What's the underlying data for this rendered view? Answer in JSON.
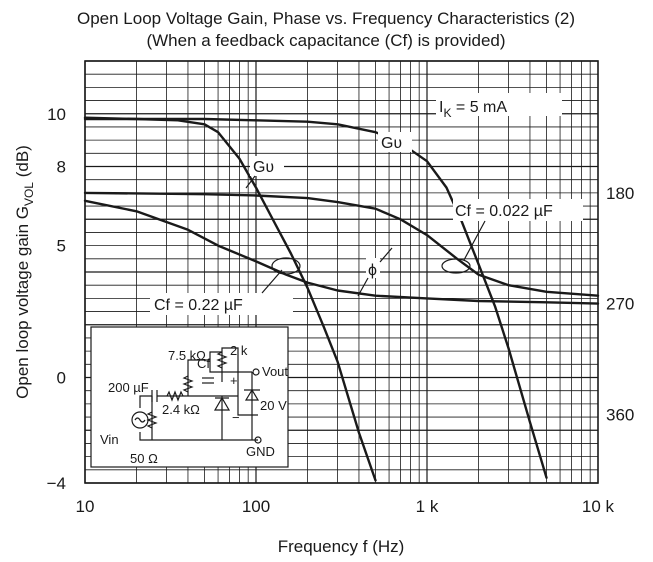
{
  "chart_data": {
    "type": "line",
    "title_line1": "Open Loop Voltage Gain, Phase vs. Frequency Characteristics (2)",
    "title_line2": "(When a feedback capacitance (Cf) is provided)",
    "xlabel": "Frequency  f  (Hz)",
    "ylabel_prefix": "Open loop voltage gain  G",
    "ylabel_sub": "VOL",
    "ylabel_suffix": "  (dB)",
    "x_scale": "log",
    "xlim": [
      10,
      10000
    ],
    "x_ticks": [
      {
        "value": 10,
        "label": "10"
      },
      {
        "value": 100,
        "label": "100"
      },
      {
        "value": 1000,
        "label": "1 k"
      },
      {
        "value": 10000,
        "label": "10 k"
      }
    ],
    "ylim": [
      -4,
      12
    ],
    "y_ticks": [
      {
        "value": 10,
        "label": "10"
      },
      {
        "value": 8,
        "label": "8"
      },
      {
        "value": 5,
        "label": "5"
      },
      {
        "value": 0,
        "label": "0"
      },
      {
        "value": -4,
        "label": "−4"
      }
    ],
    "y2_ticks": [
      {
        "value": 7,
        "label": "180"
      },
      {
        "value": 2.8,
        "label": "270"
      },
      {
        "value": -1.4,
        "label": "360"
      }
    ],
    "grid": true,
    "series": [
      {
        "name": "Gʋ",
        "role": "gain, Cf = 0.22 µF",
        "x": [
          10,
          20,
          35,
          50,
          60,
          80,
          100,
          130,
          160,
          200,
          250,
          300,
          400,
          500
        ],
        "y": [
          9.85,
          9.8,
          9.75,
          9.6,
          9.3,
          8.3,
          7.2,
          5.8,
          4.7,
          3.4,
          1.9,
          0.6,
          -2.1,
          -3.9
        ]
      },
      {
        "name": "Gʋ",
        "role": "gain, Cf = 0.022 µF",
        "x": [
          10,
          50,
          100,
          200,
          300,
          500,
          700,
          1000,
          1300,
          1600,
          2000,
          2500,
          3000,
          4000,
          5000
        ],
        "y": [
          9.8,
          9.8,
          9.75,
          9.7,
          9.6,
          9.3,
          8.9,
          8.2,
          7.2,
          5.9,
          4.3,
          2.7,
          1.1,
          -1.7,
          -3.8
        ]
      },
      {
        "role": "phase, Cf = 0.22 µF",
        "x": [
          10,
          20,
          40,
          60,
          100,
          150,
          200,
          300,
          500,
          1000,
          2000,
          5000,
          10000
        ],
        "y": [
          6.7,
          6.3,
          5.6,
          5.0,
          4.4,
          3.9,
          3.6,
          3.3,
          3.1,
          3.0,
          2.9,
          2.85,
          2.8
        ]
      },
      {
        "role": "phase, Cf = 0.022 µF",
        "x": [
          10,
          50,
          100,
          200,
          300,
          500,
          700,
          1000,
          1500,
          2000,
          3000,
          5000,
          10000
        ],
        "y": [
          7.0,
          6.95,
          6.9,
          6.8,
          6.65,
          6.4,
          6.0,
          5.4,
          4.5,
          3.9,
          3.5,
          3.25,
          3.1
        ]
      }
    ],
    "annotations": {
      "ik": "I",
      "ik_sub": "K",
      "ik_val": " = 5 mA",
      "gv_left": "Gʋ",
      "gv_right": "Gʋ",
      "phi": "ϕ",
      "cf_high": "Cf = 0.022 µF",
      "cf_low": "Cf = 0.22 µF"
    },
    "circuit": {
      "r_top": "2 k",
      "vout": "Vout",
      "r_75": "7.5 kΩ",
      "cf": "Cf",
      "plus": "+",
      "c_in": "200 µF",
      "r_24": "2.4 kΩ",
      "supply": "20 V",
      "minus": "−",
      "vin": "Vin",
      "r_50": "50 Ω",
      "gnd": "GND"
    }
  }
}
